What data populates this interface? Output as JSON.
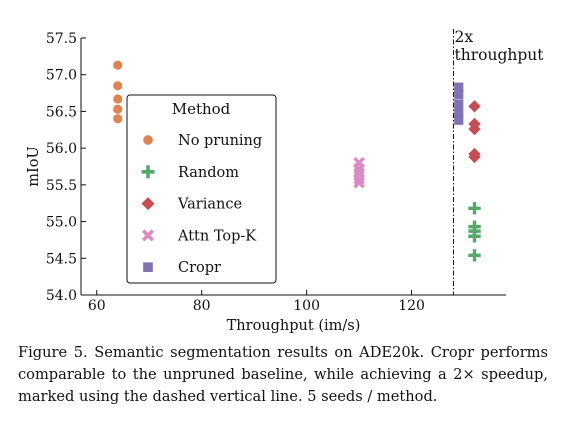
{
  "chart_data": {
    "type": "scatter",
    "xlabel": "Throughput (im/s)",
    "ylabel": "mIoU",
    "xlim": [
      57,
      138
    ],
    "ylim": [
      54.0,
      57.5
    ],
    "xticks": [
      "60",
      "80",
      "100",
      "120"
    ],
    "yticks": [
      "54.0",
      "54.5",
      "55.0",
      "55.5",
      "56.0",
      "56.5",
      "57.0",
      "57.5"
    ],
    "grid": false,
    "legend_title": "Method",
    "legend_position": "center-left",
    "reference_line": {
      "x": 128,
      "style": "dashed",
      "label_line1": "2x",
      "label_line2": "throughput"
    },
    "series": [
      {
        "name": "No pruning",
        "marker": "circle",
        "color": "#dd8452",
        "x": [
          64,
          64,
          64,
          64,
          64
        ],
        "y": [
          57.13,
          56.85,
          56.67,
          56.53,
          56.4
        ]
      },
      {
        "name": "Random",
        "marker": "plus",
        "color": "#55a868",
        "x": [
          132,
          132,
          132,
          132,
          132
        ],
        "y": [
          55.18,
          54.93,
          54.87,
          54.8,
          54.54
        ]
      },
      {
        "name": "Variance",
        "marker": "diamond",
        "color": "#c44e52",
        "x": [
          132,
          132,
          132,
          132,
          132
        ],
        "y": [
          56.57,
          56.33,
          56.26,
          55.92,
          55.88
        ]
      },
      {
        "name": "Attn Top-K",
        "marker": "x",
        "color": "#da8bc3",
        "x": [
          110,
          110,
          110,
          110,
          110
        ],
        "y": [
          55.8,
          55.72,
          55.66,
          55.58,
          55.53
        ]
      },
      {
        "name": "Cropr",
        "marker": "square",
        "color": "#8172b3",
        "x": [
          129,
          129,
          129,
          129,
          129
        ],
        "y": [
          56.83,
          56.73,
          56.6,
          56.48,
          56.38
        ]
      }
    ]
  },
  "caption": "Figure 5. Semantic segmentation results on ADE20k. Cropr performs comparable to the unpruned baseline, while achieving a 2× speedup, marked using the dashed vertical line. 5 seeds / method."
}
